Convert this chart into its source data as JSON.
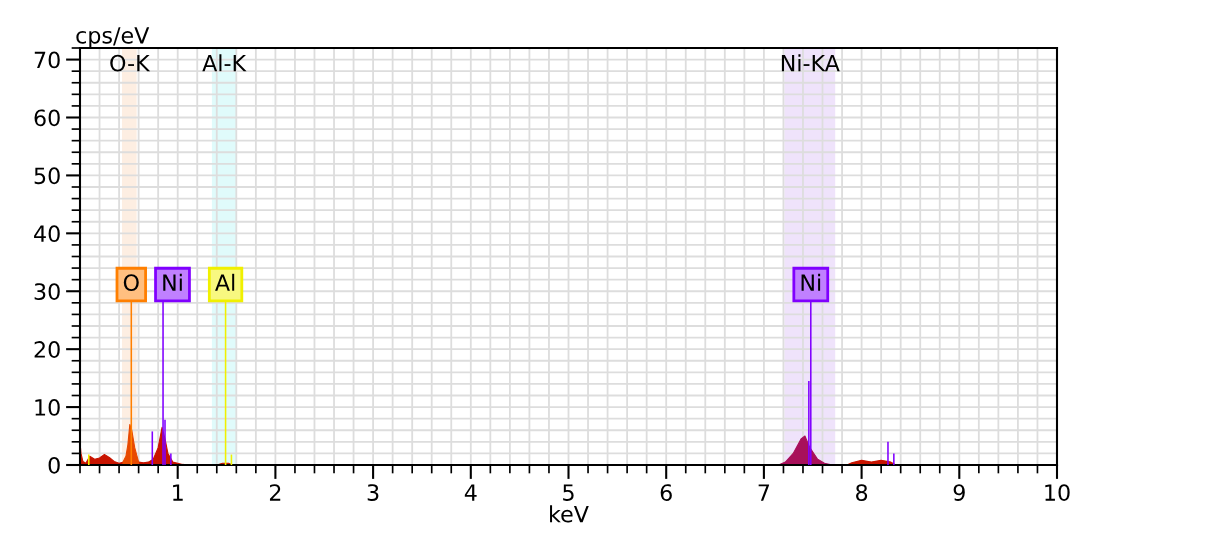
{
  "chart_data": {
    "type": "area",
    "xlabel": "keV",
    "ylabel": "cps/eV",
    "xlim": [
      0,
      10
    ],
    "ylim": [
      0,
      72
    ],
    "xticks": [
      1,
      2,
      3,
      4,
      5,
      6,
      7,
      8,
      9,
      10
    ],
    "yticks": [
      0,
      10,
      20,
      30,
      40,
      50,
      60,
      70
    ],
    "grid": true,
    "bands": [
      {
        "axis": "x",
        "from": 0.43,
        "to": 0.58,
        "label": "O-K",
        "color": "#fdeee2"
      },
      {
        "axis": "x",
        "from": 1.35,
        "to": 1.6,
        "label": "Al-K",
        "color": "#e0fbfb"
      },
      {
        "axis": "x",
        "from": 7.21,
        "to": 7.73,
        "label": "Ni-KA",
        "color": "#efe3fb"
      }
    ],
    "series": [
      {
        "color": "#c81400",
        "x": [
          0.0,
          0.01,
          0.03,
          0.06,
          0.1,
          0.15,
          0.2,
          0.25,
          0.3,
          0.35,
          0.4,
          0.45,
          0.6,
          0.65,
          0.7,
          0.75,
          0.8,
          0.84,
          0.87,
          0.9,
          0.95,
          1.0,
          1.05,
          1.1,
          1.4,
          1.46,
          1.52,
          1.56,
          7.1,
          7.7,
          7.85,
          7.9,
          8.0,
          8.1,
          8.2,
          8.3,
          8.35,
          10.0
        ],
        "values": [
          4.0,
          2.0,
          0.6,
          0.3,
          1.5,
          1.0,
          1.2,
          1.8,
          1.3,
          0.6,
          0.3,
          0.5,
          0.5,
          0.4,
          0.5,
          1.0,
          3.0,
          6.5,
          4.5,
          2.0,
          0.5,
          0.3,
          0.1,
          0.0,
          0.0,
          0.3,
          0.3,
          0.0,
          0.0,
          0.0,
          0.0,
          0.4,
          0.8,
          0.5,
          0.8,
          0.5,
          0.0,
          0.0
        ]
      },
      {
        "color": "#e84a00",
        "x": [
          0.44,
          0.47,
          0.49,
          0.51,
          0.53,
          0.56,
          0.6
        ],
        "values": [
          0.5,
          1.5,
          3.5,
          7.0,
          6.0,
          3.0,
          0.5
        ]
      },
      {
        "color": "#a8105a",
        "x": [
          7.15,
          7.22,
          7.3,
          7.38,
          7.42,
          7.47,
          7.55,
          7.62,
          7.7
        ],
        "values": [
          0.0,
          0.5,
          2.0,
          4.5,
          5.0,
          3.0,
          1.0,
          0.3,
          0.0
        ]
      },
      {
        "type": "bar",
        "name": "O",
        "color": "#ff7f00",
        "x": [
          0.525
        ],
        "values": [
          28.5
        ]
      },
      {
        "type": "bar",
        "name": "Ni",
        "color": "#8000ff",
        "x": [
          0.74,
          0.85,
          0.87,
          0.93
        ],
        "values": [
          5.8,
          28.5,
          7.8,
          2.0
        ]
      },
      {
        "type": "bar",
        "name": "Al",
        "color": "#f0f000",
        "x": [
          1.49,
          1.55
        ],
        "values": [
          28.5,
          1.8
        ]
      },
      {
        "type": "bar",
        "color": "#f0f000",
        "x": [
          0.09
        ],
        "values": [
          1.8
        ]
      },
      {
        "type": "bar",
        "name": "Ni",
        "color": "#8000ff",
        "x": [
          7.46,
          7.48,
          8.27,
          8.33
        ],
        "values": [
          14.5,
          28.5,
          4.0,
          2.0
        ]
      }
    ]
  }
}
